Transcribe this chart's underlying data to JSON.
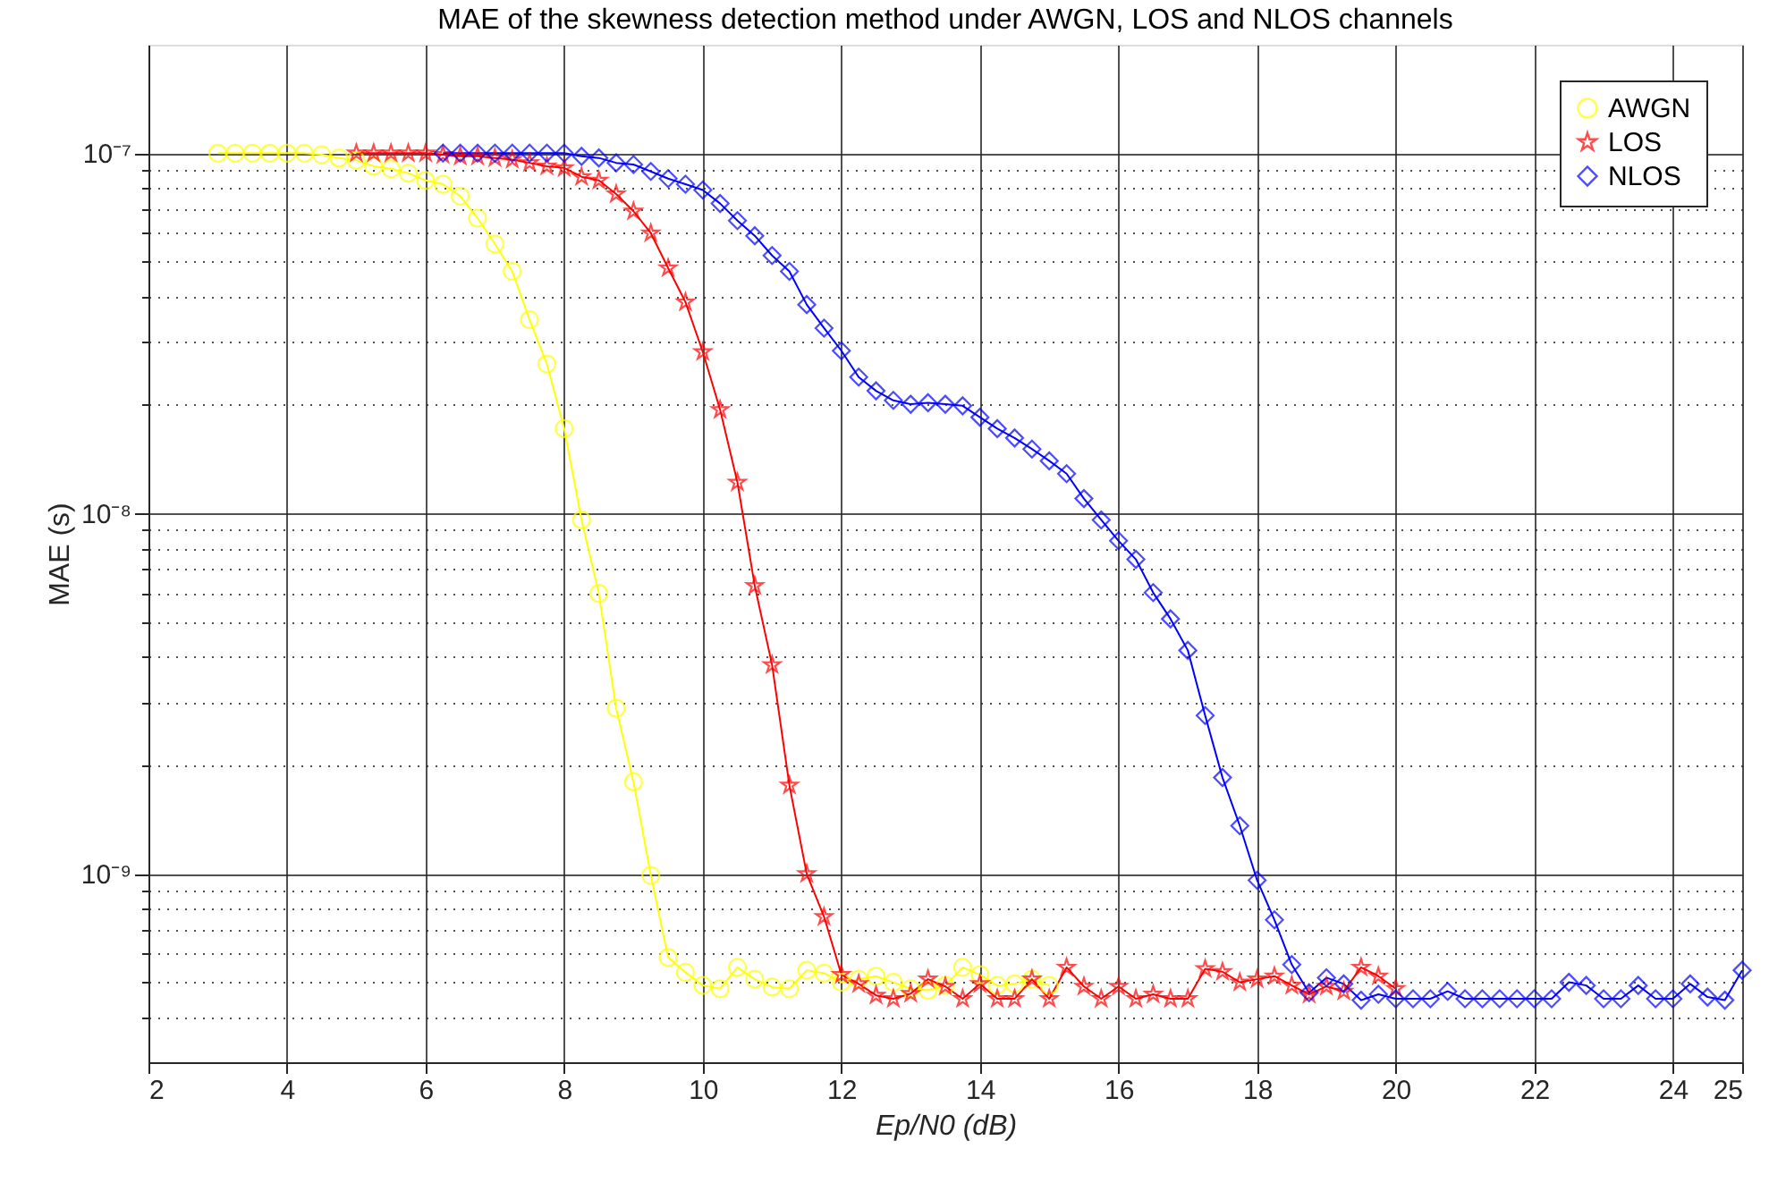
{
  "chart_data": {
    "type": "line",
    "title": "MAE of the skewness detection method under AWGN, LOS and NLOS channels",
    "xlabel": "Ep/N0 (dB)",
    "ylabel": "MAE (s)",
    "log": "y",
    "xlim": [
      2,
      25
    ],
    "xticks": [
      2,
      4,
      6,
      8,
      10,
      12,
      14,
      16,
      18,
      20,
      22,
      24,
      25
    ],
    "ylim": [
      3e-10,
      2e-07
    ],
    "yticks": [
      {
        "value": 4e-10,
        "label": null
      },
      {
        "value": 5e-10,
        "label": null
      },
      {
        "value": 6e-10,
        "label": null
      },
      {
        "value": 7e-10,
        "label": null
      },
      {
        "value": 8e-10,
        "label": null
      },
      {
        "value": 9e-10,
        "label": null
      },
      {
        "value": 1e-09,
        "label": "10⁻⁹"
      },
      {
        "value": 2e-09,
        "label": null
      },
      {
        "value": 3e-09,
        "label": null
      },
      {
        "value": 4e-09,
        "label": null
      },
      {
        "value": 5e-09,
        "label": null
      },
      {
        "value": 6e-09,
        "label": null
      },
      {
        "value": 7e-09,
        "label": null
      },
      {
        "value": 8e-09,
        "label": null
      },
      {
        "value": 9e-09,
        "label": null
      },
      {
        "value": 1e-08,
        "label": "10⁻⁸"
      },
      {
        "value": 2e-08,
        "label": null
      },
      {
        "value": 3e-08,
        "label": null
      },
      {
        "value": 4e-08,
        "label": null
      },
      {
        "value": 5e-08,
        "label": null
      },
      {
        "value": 6e-08,
        "label": null
      },
      {
        "value": 7e-08,
        "label": null
      },
      {
        "value": 8e-08,
        "label": null
      },
      {
        "value": 9e-08,
        "label": null
      },
      {
        "value": 1e-07,
        "label": "10⁻⁷"
      }
    ],
    "grid": true,
    "legend": "top right",
    "series": [
      {
        "name": "AWGN",
        "color": "#ffff00",
        "marker": "circle",
        "x": [
          3,
          3.25,
          3.5,
          3.75,
          4,
          4.25,
          4.5,
          4.75,
          5,
          5.25,
          5.5,
          5.75,
          6,
          6.25,
          6.5,
          6.75,
          7,
          7.25,
          7.5,
          7.75,
          8,
          8.25,
          8.5,
          8.75,
          9,
          9.25,
          9.5,
          9.75,
          10,
          10.25,
          10.5,
          10.75,
          11,
          11.25,
          11.5,
          11.75,
          12,
          12.25,
          12.5,
          12.75,
          13,
          13.25,
          13.5,
          13.75,
          14,
          14.25,
          14.5,
          14.75,
          15
        ],
        "values": [
          1e-07,
          1e-07,
          1e-07,
          1e-07,
          1e-07,
          1e-07,
          9.9e-08,
          9.7e-08,
          9.55e-08,
          9.2e-08,
          9.05e-08,
          8.8e-08,
          8.4e-08,
          8.2e-08,
          7.6e-08,
          6.6e-08,
          5.6e-08,
          4.7e-08,
          3.45e-08,
          2.6e-08,
          1.72e-08,
          9.6e-09,
          6e-09,
          2.88e-09,
          1.8e-09,
          9.9e-10,
          5.86e-10,
          5.33e-10,
          4.9e-10,
          4.8e-10,
          5.5e-10,
          5.1e-10,
          4.85e-10,
          4.8e-10,
          5.4e-10,
          5.3e-10,
          5e-10,
          5.1e-10,
          5.2e-10,
          5e-10,
          4.8e-10,
          4.75e-10,
          4.9e-10,
          5.5e-10,
          5.25e-10,
          4.9e-10,
          4.95e-10,
          5.1e-10,
          4.9e-10
        ]
      },
      {
        "name": "LOS",
        "color": "#ff0000",
        "marker": "star",
        "x": [
          5,
          5.25,
          5.5,
          5.75,
          6,
          6.25,
          6.5,
          6.75,
          7,
          7.25,
          7.5,
          7.75,
          8,
          8.25,
          8.5,
          8.75,
          9,
          9.25,
          9.5,
          9.75,
          10,
          10.25,
          10.5,
          10.75,
          11,
          11.25,
          11.5,
          11.75,
          12,
          12.25,
          12.5,
          12.75,
          13,
          13.25,
          13.5,
          13.75,
          14,
          14.25,
          14.5,
          14.75,
          15,
          15.25,
          15.5,
          15.75,
          16,
          16.25,
          16.5,
          16.75,
          17,
          17.25,
          17.5,
          17.75,
          18,
          18.25,
          18.5,
          18.75,
          19,
          19.25,
          19.5,
          19.75,
          20
        ],
        "values": [
          1e-07,
          1e-07,
          1e-07,
          1e-07,
          1e-07,
          9.9e-08,
          9.8e-08,
          9.8e-08,
          9.7e-08,
          9.6e-08,
          9.4e-08,
          9.2e-08,
          9.1e-08,
          8.6e-08,
          8.4e-08,
          7.7e-08,
          6.9e-08,
          6e-08,
          4.8e-08,
          3.86e-08,
          2.81e-08,
          1.94e-08,
          1.22e-08,
          6.3e-09,
          3.8e-09,
          1.76e-09,
          1e-09,
          7.6e-10,
          5.25e-10,
          4.95e-10,
          4.6e-10,
          4.5e-10,
          4.65e-10,
          5.1e-10,
          4.87e-10,
          4.5e-10,
          4.95e-10,
          4.5e-10,
          4.5e-10,
          5.1e-10,
          4.5e-10,
          5.5e-10,
          4.87e-10,
          4.5e-10,
          4.87e-10,
          4.5e-10,
          4.63e-10,
          4.5e-10,
          4.5e-10,
          5.45e-10,
          5.35e-10,
          5e-10,
          5.1e-10,
          5.2e-10,
          4.9e-10,
          4.63e-10,
          4.87e-10,
          4.72e-10,
          5.5e-10,
          5.2e-10,
          4.8e-10
        ]
      },
      {
        "name": "NLOS",
        "color": "#0000ff",
        "marker": "diamond",
        "x": [
          6.25,
          6.5,
          6.75,
          7,
          7.25,
          7.5,
          7.75,
          8,
          8.25,
          8.5,
          8.75,
          9,
          9.25,
          9.5,
          9.75,
          10,
          10.25,
          10.5,
          10.75,
          11,
          11.25,
          11.5,
          11.75,
          12,
          12.25,
          12.5,
          12.75,
          13,
          13.25,
          13.5,
          13.75,
          14,
          14.25,
          14.5,
          14.75,
          15,
          15.25,
          15.5,
          15.75,
          16,
          16.25,
          16.5,
          16.75,
          17,
          17.25,
          17.5,
          17.75,
          18,
          18.25,
          18.5,
          18.75,
          19,
          19.25,
          19.5,
          19.75,
          20,
          20.25,
          20.5,
          20.75,
          21,
          21.25,
          21.5,
          21.75,
          22,
          22.25,
          22.5,
          22.75,
          23,
          23.25,
          23.5,
          23.75,
          24,
          24.25,
          24.5,
          24.75,
          25
        ],
        "values": [
          1e-07,
          1e-07,
          1e-07,
          1e-07,
          1e-07,
          1e-07,
          1e-07,
          1e-07,
          9.8e-08,
          9.7e-08,
          9.4e-08,
          9.3e-08,
          8.9e-08,
          8.5e-08,
          8.2e-08,
          7.9e-08,
          7.25e-08,
          6.5e-08,
          5.9e-08,
          5.2e-08,
          4.7e-08,
          3.8e-08,
          3.27e-08,
          2.83e-08,
          2.39e-08,
          2.19e-08,
          2.06e-08,
          2.01e-08,
          2.03e-08,
          2.01e-08,
          1.99e-08,
          1.85e-08,
          1.72e-08,
          1.62e-08,
          1.51e-08,
          1.4e-08,
          1.29e-08,
          1.1e-08,
          9.6e-09,
          8.4e-09,
          7.46e-09,
          6.03e-09,
          5.1e-09,
          4.17e-09,
          2.75e-09,
          1.85e-09,
          1.36e-09,
          9.6e-10,
          7.45e-10,
          5.6e-10,
          4.68e-10,
          5.15e-10,
          4.95e-10,
          4.46e-10,
          4.63e-10,
          4.5e-10,
          4.5e-10,
          4.5e-10,
          4.72e-10,
          4.5e-10,
          4.5e-10,
          4.5e-10,
          4.5e-10,
          4.5e-10,
          4.5e-10,
          5e-10,
          4.9e-10,
          4.5e-10,
          4.5e-10,
          4.9e-10,
          4.5e-10,
          4.5e-10,
          4.95e-10,
          4.55e-10,
          4.46e-10,
          5.4e-10
        ]
      }
    ]
  }
}
